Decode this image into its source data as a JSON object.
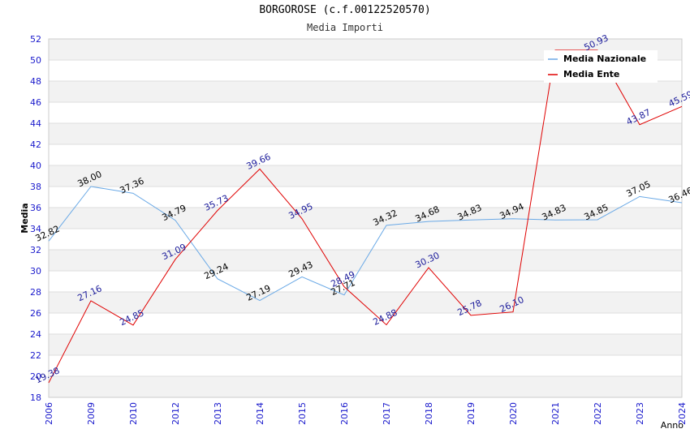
{
  "chart_data": {
    "type": "line",
    "title": "BORGOROSE (c.f.00122520570)",
    "subtitle": "Media Importi",
    "xlabel": "Anno",
    "ylabel": "Media",
    "ylim": [
      18,
      52
    ],
    "ytick_step": 2,
    "categories": [
      "2006",
      "2009",
      "2010",
      "2012",
      "2013",
      "2014",
      "2015",
      "2016",
      "2017",
      "2018",
      "2019",
      "2020",
      "2021",
      "2022",
      "2023",
      "2024"
    ],
    "series": [
      {
        "name": "Media Nazionale",
        "color": "#6aa9e6",
        "label_color": "#000000",
        "values": [
          32.82,
          38.0,
          37.36,
          34.79,
          29.24,
          27.19,
          29.43,
          27.71,
          34.32,
          34.68,
          34.83,
          34.94,
          34.83,
          34.85,
          37.05,
          36.46
        ],
        "labels": [
          "32.82",
          "38.00",
          "37.36",
          "34.79",
          "29.24",
          "27.19",
          "29.43",
          "27.71",
          "34.32",
          "34.68",
          "34.83",
          "34.94",
          "34.83",
          "34.85",
          "37.05",
          "36.46"
        ]
      },
      {
        "name": "Media Ente",
        "color": "#e00000",
        "label_color": "#1a1a9a",
        "values": [
          19.38,
          27.16,
          24.85,
          31.09,
          35.73,
          39.66,
          34.95,
          28.49,
          24.88,
          30.3,
          25.78,
          26.1,
          50.93,
          50.93,
          43.87,
          45.59
        ],
        "labels": [
          "19.38",
          "27.16",
          "24.85",
          "31.09",
          "35.73",
          "39.66",
          "34.95",
          "28.49",
          "24.88",
          "30.30",
          "25.78",
          "26.10",
          "",
          "50.93",
          "43.87",
          "45.59"
        ]
      }
    ],
    "legend_position": "top-right",
    "grid": true
  }
}
